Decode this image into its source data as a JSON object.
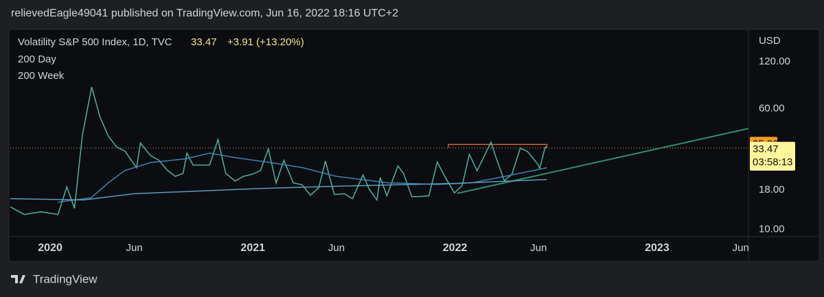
{
  "header": "relievedEagle49041 published on TradingView.com, Jun 16, 2022 18:16 UTC+2",
  "footer": "TradingView",
  "chart_data": {
    "type": "line",
    "title": "Volatility S&P 500 Index, 1D, TVC",
    "last_price": 33.47,
    "change_text": "+3.91 (+13.20%)",
    "countdown": "03:58:13",
    "currency": "USD",
    "log_scale": true,
    "xlim": [
      "2019-10-21",
      "2023-06-15"
    ],
    "xticks": [
      {
        "value": "2020-01-01",
        "label": "2020"
      },
      {
        "value": "2020-06-01",
        "label": "Jun"
      },
      {
        "value": "2021-01-01",
        "label": "2021"
      },
      {
        "value": "2021-06-01",
        "label": "Jun"
      },
      {
        "value": "2022-01-01",
        "label": "2022"
      },
      {
        "value": "2022-06-01",
        "label": "Jun"
      },
      {
        "value": "2023-01-01",
        "label": "2023"
      },
      {
        "value": "2023-06-01",
        "label": "Jun"
      }
    ],
    "ylim": [
      9,
      190
    ],
    "yticks": [
      {
        "value": 120,
        "label": "120.00"
      },
      {
        "value": 60,
        "label": "60.00"
      },
      {
        "value": 18,
        "label": "18.00"
      },
      {
        "value": 10,
        "label": "10.00"
      }
    ],
    "series": [
      {
        "name": "Volatility S&P 500 Index",
        "color": "#4fb3a3",
        "x": [
          "2019-10-21",
          "2019-11-15",
          "2019-12-15",
          "2020-01-15",
          "2020-01-31",
          "2020-02-14",
          "2020-02-28",
          "2020-03-16",
          "2020-03-31",
          "2020-04-15",
          "2020-04-30",
          "2020-05-15",
          "2020-06-05",
          "2020-06-12",
          "2020-06-30",
          "2020-07-15",
          "2020-07-31",
          "2020-08-14",
          "2020-08-28",
          "2020-09-04",
          "2020-09-15",
          "2020-09-30",
          "2020-10-15",
          "2020-10-30",
          "2020-11-13",
          "2020-11-30",
          "2020-12-15",
          "2020-12-31",
          "2021-01-15",
          "2021-01-29",
          "2021-02-12",
          "2021-02-26",
          "2021-03-15",
          "2021-03-31",
          "2021-04-15",
          "2021-04-30",
          "2021-05-12",
          "2021-05-28",
          "2021-06-15",
          "2021-06-30",
          "2021-07-19",
          "2021-07-30",
          "2021-08-13",
          "2021-08-19",
          "2021-08-31",
          "2021-09-20",
          "2021-09-30",
          "2021-10-15",
          "2021-10-29",
          "2021-11-15",
          "2021-11-30",
          "2021-12-15",
          "2021-12-31",
          "2022-01-14",
          "2022-01-27",
          "2022-02-10",
          "2022-02-24",
          "2022-03-07",
          "2022-03-15",
          "2022-03-31",
          "2022-04-14",
          "2022-04-29",
          "2022-05-12",
          "2022-05-31",
          "2022-06-03",
          "2022-06-13",
          "2022-06-16"
        ],
        "values": [
          14,
          12.5,
          13,
          12.5,
          18.8,
          13.7,
          40,
          82.7,
          53,
          40,
          34,
          32,
          25,
          36,
          30,
          28,
          24,
          22,
          23,
          31,
          26,
          26,
          26,
          38,
          23,
          20.5,
          22,
          22.7,
          24,
          33,
          19.9,
          27.9,
          20,
          19.4,
          16.6,
          18.6,
          27.6,
          16.8,
          17,
          15.8,
          22.5,
          18.2,
          15.5,
          21.6,
          16.5,
          25.7,
          23,
          16.3,
          16.3,
          16.5,
          27.2,
          21.5,
          17.2,
          19.2,
          30.5,
          23.9,
          30.3,
          36.5,
          29.8,
          20.6,
          22.7,
          33.4,
          31.8,
          26.2,
          24.8,
          34,
          33.47
        ]
      },
      {
        "name": "200 Day",
        "color": "#3d84b8",
        "x": [
          "2020-01-15",
          "2020-03-15",
          "2020-04-15",
          "2020-05-15",
          "2020-07-01",
          "2020-09-01",
          "2020-10-15",
          "2020-12-01",
          "2021-02-01",
          "2021-04-01",
          "2021-06-01",
          "2021-09-01",
          "2021-12-01",
          "2022-02-01",
          "2022-04-01",
          "2022-06-16"
        ],
        "values": [
          15,
          16,
          20,
          24,
          27,
          28.5,
          31,
          29,
          27,
          25,
          22,
          20,
          19.5,
          20,
          22,
          25
        ]
      },
      {
        "name": "200 Week",
        "color": "#5b9cc4",
        "x": [
          "2019-10-21",
          "2020-03-01",
          "2020-06-01",
          "2021-01-01",
          "2021-06-01",
          "2022-01-01",
          "2022-06-16"
        ],
        "values": [
          15.8,
          15.5,
          17,
          18.3,
          19,
          19.8,
          21
        ]
      }
    ],
    "trendline": {
      "color": "#2f8f6b",
      "x": [
        "2022-01-05",
        "2023-06-15"
      ],
      "values": [
        17.1,
        44.7
      ]
    },
    "resistance": {
      "color": "#e8743b",
      "x": [
        "2021-12-20",
        "2022-06-16"
      ],
      "value": 35.32
    }
  }
}
